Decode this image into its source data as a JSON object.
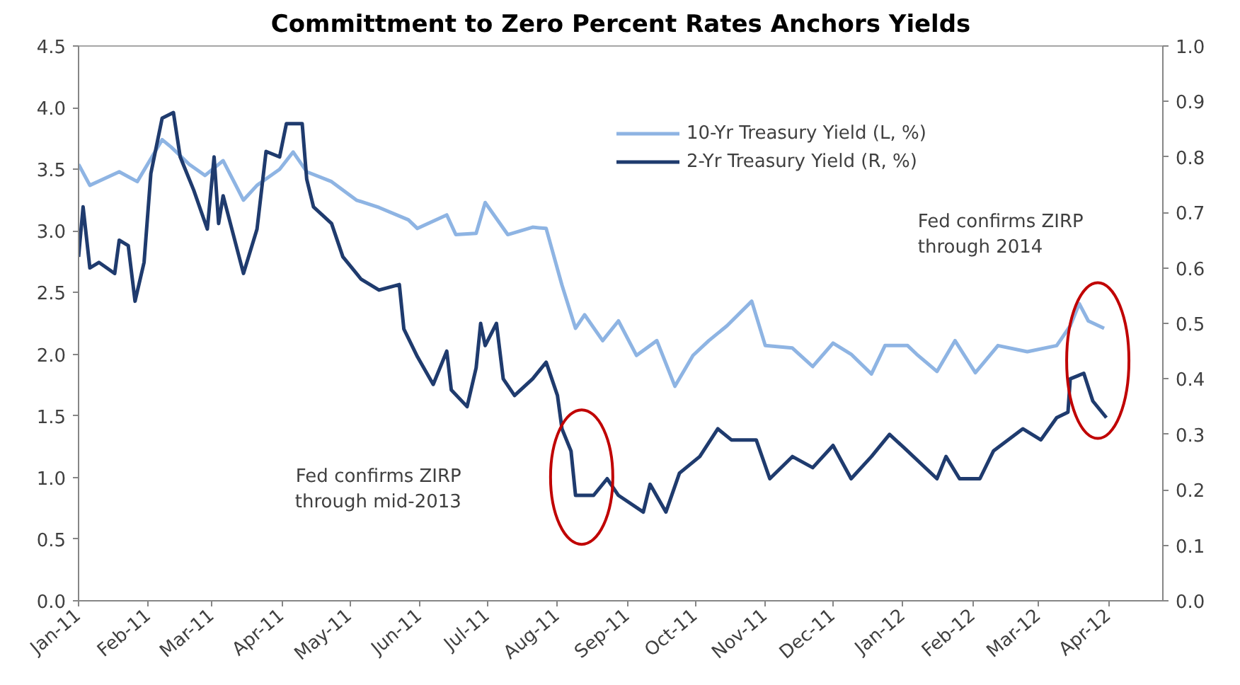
{
  "chart_data": {
    "type": "line",
    "title": "Committment to Zero Percent Rates Anchors Yields",
    "xlim": [
      "2011-01-01",
      "2012-04-25"
    ],
    "xticks": [
      {
        "value": "2011-01-01",
        "label": "Jan-11"
      },
      {
        "value": "2011-02-01",
        "label": "Feb-11"
      },
      {
        "value": "2011-03-01",
        "label": "Mar-11"
      },
      {
        "value": "2011-04-01",
        "label": "Apr-11"
      },
      {
        "value": "2011-05-01",
        "label": "May-11"
      },
      {
        "value": "2011-06-01",
        "label": "Jun-11"
      },
      {
        "value": "2011-07-01",
        "label": "Jul-11"
      },
      {
        "value": "2011-08-01",
        "label": "Aug-11"
      },
      {
        "value": "2011-09-01",
        "label": "Sep-11"
      },
      {
        "value": "2011-10-01",
        "label": "Oct-11"
      },
      {
        "value": "2011-11-01",
        "label": "Nov-11"
      },
      {
        "value": "2011-12-01",
        "label": "Dec-11"
      },
      {
        "value": "2012-01-01",
        "label": "Jan-12"
      },
      {
        "value": "2012-02-01",
        "label": "Feb-12"
      },
      {
        "value": "2012-03-01",
        "label": "Mar-12"
      },
      {
        "value": "2012-04-01",
        "label": "Apr-12"
      }
    ],
    "ylim": [
      0,
      4.5
    ],
    "yticks": [
      {
        "value": 0,
        "label": "0.0"
      },
      {
        "value": 0.5,
        "label": "0.5"
      },
      {
        "value": 1,
        "label": "1.0"
      },
      {
        "value": 1.5,
        "label": "1.5"
      },
      {
        "value": 2,
        "label": "2.0"
      },
      {
        "value": 2.5,
        "label": "2.5"
      },
      {
        "value": 3,
        "label": "3.0"
      },
      {
        "value": 3.5,
        "label": "3.5"
      },
      {
        "value": 4,
        "label": "4.0"
      },
      {
        "value": 4.5,
        "label": "4.5"
      }
    ],
    "y2lim": [
      0,
      1
    ],
    "y2ticks": [
      {
        "value": 0,
        "label": "0.0"
      },
      0.1,
      0.2,
      0.3,
      0.4,
      0.5,
      0.6,
      0.7,
      0.8,
      0.9,
      {
        "value": 1,
        "label": "1.0"
      }
    ],
    "grid": false,
    "legend": "top",
    "line_style": "solid",
    "annotations": [
      "Fed confirms ZIRP\nthrough mid-2013",
      "Fed confirms ZIRP\nthrough 2014"
    ],
    "series": [
      {
        "name": "10-Yr Treasury Yield (L, %)",
        "color": "#8eb4e3",
        "x": [
          "2011-01-01",
          "2011-01-06",
          "2011-01-19",
          "2011-01-27",
          "2011-02-07",
          "2011-02-11",
          "2011-02-19",
          "2011-02-26",
          "2011-03-06",
          "2011-03-15",
          "2011-03-21",
          "2011-03-31",
          "2011-04-06",
          "2011-04-12",
          "2011-04-23",
          "2011-05-04",
          "2011-05-14",
          "2011-05-27",
          "2011-05-31",
          "2011-06-13",
          "2011-06-17",
          "2011-06-26",
          "2011-06-30",
          "2011-07-10",
          "2011-07-21",
          "2011-07-27",
          "2011-08-03",
          "2011-08-09",
          "2011-08-13",
          "2011-08-21",
          "2011-08-28",
          "2011-09-05",
          "2011-09-14",
          "2011-09-22",
          "2011-09-30",
          "2011-10-07",
          "2011-10-15",
          "2011-10-26",
          "2011-11-01",
          "2011-11-13",
          "2011-11-22",
          "2011-12-01",
          "2011-12-09",
          "2011-12-18",
          "2011-12-24",
          "2012-01-03",
          "2012-01-07",
          "2012-01-16",
          "2012-01-24",
          "2012-02-02",
          "2012-02-12",
          "2012-02-25",
          "2012-03-09",
          "2012-03-15",
          "2012-03-19",
          "2012-03-23",
          "2012-03-30"
        ],
        "values": [
          3.54,
          3.37,
          3.48,
          3.4,
          3.74,
          3.68,
          3.54,
          3.45,
          3.57,
          3.25,
          3.37,
          3.5,
          3.64,
          3.48,
          3.4,
          3.25,
          3.19,
          3.09,
          3.02,
          3.13,
          2.97,
          2.98,
          3.23,
          2.97,
          3.03,
          3.02,
          2.56,
          2.21,
          2.32,
          2.11,
          2.27,
          1.99,
          2.11,
          1.74,
          1.99,
          2.11,
          2.23,
          2.43,
          2.07,
          2.05,
          1.9,
          2.09,
          2.0,
          1.84,
          2.07,
          2.07,
          2.0,
          1.86,
          2.11,
          1.85,
          2.07,
          2.02,
          2.07,
          2.23,
          2.41,
          2.27,
          2.21
        ]
      },
      {
        "name": "2-Yr Treasury Yield (R, %)",
        "color": "#1f3b6e",
        "axis": "y2",
        "x": [
          "2011-01-01",
          "2011-01-03",
          "2011-01-06",
          "2011-01-10",
          "2011-01-17",
          "2011-01-19",
          "2011-01-23",
          "2011-01-26",
          "2011-01-30",
          "2011-02-02",
          "2011-02-07",
          "2011-02-12",
          "2011-02-15",
          "2011-02-21",
          "2011-02-27",
          "2011-03-02",
          "2011-03-04",
          "2011-03-06",
          "2011-03-15",
          "2011-03-21",
          "2011-03-25",
          "2011-03-31",
          "2011-04-03",
          "2011-04-10",
          "2011-04-12",
          "2011-04-15",
          "2011-04-23",
          "2011-04-28",
          "2011-05-06",
          "2011-05-14",
          "2011-05-23",
          "2011-05-25",
          "2011-05-31",
          "2011-06-07",
          "2011-06-13",
          "2011-06-15",
          "2011-06-22",
          "2011-06-26",
          "2011-06-28",
          "2011-06-30",
          "2011-07-05",
          "2011-07-08",
          "2011-07-13",
          "2011-07-21",
          "2011-07-27",
          "2011-08-01",
          "2011-08-03",
          "2011-08-07",
          "2011-08-09",
          "2011-08-17",
          "2011-08-23",
          "2011-08-28",
          "2011-09-08",
          "2011-09-11",
          "2011-09-18",
          "2011-09-24",
          "2011-10-03",
          "2011-10-11",
          "2011-10-17",
          "2011-10-28",
          "2011-11-03",
          "2011-11-13",
          "2011-11-22",
          "2011-12-01",
          "2011-12-09",
          "2011-12-18",
          "2011-12-26",
          "2012-01-03",
          "2012-01-16",
          "2012-01-20",
          "2012-01-26",
          "2012-02-04",
          "2012-02-10",
          "2012-02-23",
          "2012-03-02",
          "2012-03-09",
          "2012-03-14",
          "2012-03-15",
          "2012-03-21",
          "2012-03-25",
          "2012-03-31"
        ],
        "values": [
          0.62,
          0.71,
          0.6,
          0.61,
          0.59,
          0.65,
          0.64,
          0.54,
          0.61,
          0.77,
          0.87,
          0.88,
          0.8,
          0.74,
          0.67,
          0.8,
          0.68,
          0.73,
          0.59,
          0.67,
          0.81,
          0.8,
          0.86,
          0.86,
          0.76,
          0.71,
          0.68,
          0.62,
          0.58,
          0.56,
          0.57,
          0.49,
          0.44,
          0.39,
          0.45,
          0.38,
          0.35,
          0.42,
          0.5,
          0.46,
          0.5,
          0.4,
          0.37,
          0.4,
          0.43,
          0.37,
          0.31,
          0.27,
          0.19,
          0.19,
          0.22,
          0.19,
          0.16,
          0.21,
          0.16,
          0.23,
          0.26,
          0.31,
          0.29,
          0.29,
          0.22,
          0.26,
          0.24,
          0.28,
          0.22,
          0.26,
          0.3,
          0.27,
          0.22,
          0.26,
          0.22,
          0.22,
          0.27,
          0.31,
          0.29,
          0.33,
          0.34,
          0.4,
          0.41,
          0.36,
          0.33
        ]
      }
    ]
  }
}
